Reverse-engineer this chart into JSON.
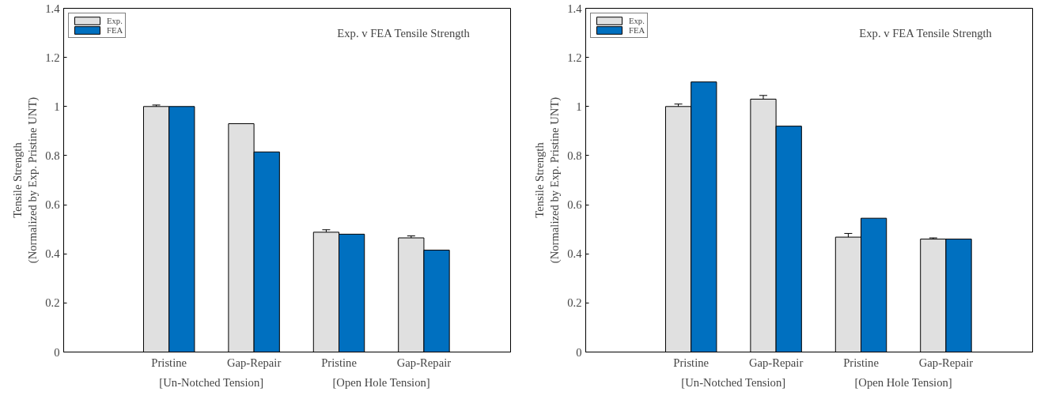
{
  "chart_data": [
    {
      "type": "bar",
      "title": "Exp. v FEA Tensile Strength",
      "ylabel": "Tensile Strength\n(Normalized by Exp. Pristine UNT)",
      "categories": [
        "Pristine",
        "Gap-Repair",
        "Pristine",
        "Gap-Repair"
      ],
      "annotations": [
        "[Un-Notched Tension]",
        "[Open Hole Tension]"
      ],
      "ylim": [
        0,
        1.4
      ],
      "yticks": [
        0,
        0.2,
        0.4,
        0.6,
        0.8,
        1,
        1.2,
        1.4
      ],
      "grid": false,
      "legend": "top left",
      "series": [
        {
          "name": "Exp.",
          "color": "#e0e0e0",
          "values": [
            1.0,
            0.93,
            0.488,
            0.465
          ],
          "errors": [
            0.006,
            null,
            0.01,
            0.008
          ]
        },
        {
          "name": "FEA",
          "color": "#0070c0",
          "values": [
            1.0,
            0.815,
            0.48,
            0.415
          ]
        }
      ]
    },
    {
      "type": "bar",
      "title": "Exp. v FEA Tensile Strength",
      "ylabel": "Tensile Strength\n(Normalized by Exp. Pristine UNT)",
      "categories": [
        "Pristine",
        "Gap-Repair",
        "Pristine",
        "Gap-Repair"
      ],
      "annotations": [
        "[Un-Notched Tension]",
        "[Open Hole Tension]"
      ],
      "ylim": [
        0,
        1.4
      ],
      "yticks": [
        0,
        0.2,
        0.4,
        0.6,
        0.8,
        1,
        1.2,
        1.4
      ],
      "grid": false,
      "legend": "top left",
      "series": [
        {
          "name": "Exp.",
          "color": "#e0e0e0",
          "values": [
            1.0,
            1.03,
            0.468,
            0.46
          ],
          "errors": [
            0.01,
            0.015,
            0.015,
            0.005
          ]
        },
        {
          "name": "FEA",
          "color": "#0070c0",
          "values": [
            1.1,
            0.92,
            0.545,
            0.46
          ]
        }
      ]
    }
  ]
}
